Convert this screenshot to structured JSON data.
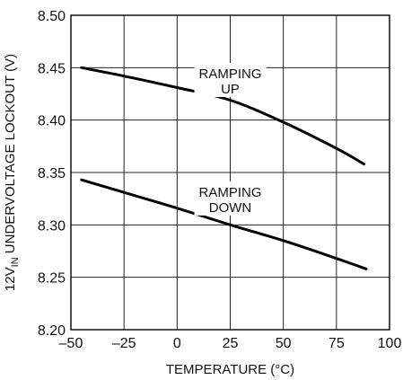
{
  "chart_data": {
    "type": "line",
    "xlabel": "TEMPERATURE (°C)",
    "ylabel_parts": [
      "12V",
      "IN",
      " UNDERVOLTAGE LOCKOUT (V)"
    ],
    "xlim": [
      -50,
      100
    ],
    "ylim": [
      8.2,
      8.5
    ],
    "grid": true,
    "x_ticks": [
      -50,
      -25,
      0,
      25,
      50,
      75,
      100
    ],
    "x_tick_labels": [
      "–50",
      "–25",
      "0",
      "25",
      "50",
      "75",
      "100"
    ],
    "y_ticks": [
      8.2,
      8.25,
      8.3,
      8.35,
      8.4,
      8.45,
      8.5
    ],
    "y_tick_labels": [
      "8.20",
      "8.25",
      "8.30",
      "8.35",
      "8.40",
      "8.45",
      "8.50"
    ],
    "series": [
      {
        "x": [
          -45,
          -25,
          0,
          25,
          50,
          75,
          88
        ],
        "y": [
          8.45,
          8.442,
          8.431,
          8.419,
          8.398,
          8.373,
          8.358
        ]
      },
      {
        "x": [
          -45,
          -25,
          0,
          25,
          50,
          75,
          89
        ],
        "y": [
          8.343,
          8.331,
          8.316,
          8.3,
          8.285,
          8.268,
          8.258
        ]
      }
    ],
    "annotations": [
      {
        "lines": [
          "RAMPING",
          "UP"
        ],
        "x": 25,
        "y": 8.44
      },
      {
        "lines": [
          "RAMPING",
          "DOWN"
        ],
        "x": 25,
        "y": 8.327
      }
    ]
  }
}
